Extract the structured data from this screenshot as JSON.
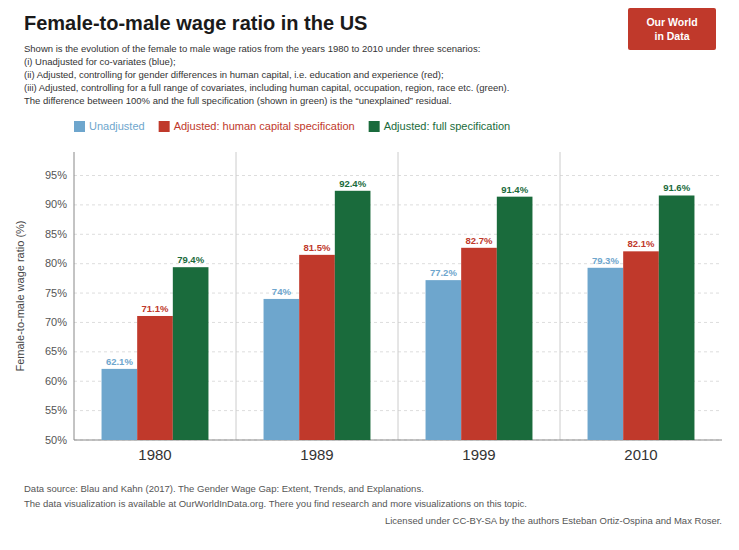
{
  "chart_data": {
    "type": "bar",
    "title": "Female-to-male wage ratio in the US",
    "subtitle": [
      "Shown is the evolution of the female to male wage ratios from the years 1980 to 2010 under three scenarios:",
      "(i) Unadjusted for co-variates (blue);",
      "(ii) Adjusted, controlling for gender differences in human capital, i.e. education and experience (red);",
      "(iii) Adjusted, controlling for a full range of covariates, including human capital, occupation, region, race etc. (green).",
      "The difference between 100% and the full specification (shown in green) is the “unexplained” residual."
    ],
    "ylabel": "Female-to-male wage ratio (%)",
    "categories": [
      "1980",
      "1989",
      "1999",
      "2010"
    ],
    "series": [
      {
        "name": "Unadjusted",
        "color": "#6EA6CD",
        "values": [
          62.1,
          74.0,
          77.2,
          79.3
        ],
        "value_labels": [
          "62.1%",
          "74%",
          "77.2%",
          "79.3%"
        ]
      },
      {
        "name": "Adjusted: human capital specification",
        "color": "#C0392B",
        "values": [
          71.1,
          81.5,
          82.7,
          82.1
        ],
        "value_labels": [
          "71.1%",
          "81.5%",
          "82.7%",
          "82.1%"
        ]
      },
      {
        "name": "Adjusted: full specification",
        "color": "#1A6B3C",
        "values": [
          79.4,
          92.4,
          91.4,
          91.6
        ],
        "value_labels": [
          "79.4%",
          "92.4%",
          "91.4%",
          "91.6%"
        ]
      }
    ],
    "ylim": [
      50,
      99
    ],
    "yticks": [
      {
        "value": 50,
        "label": "50%"
      },
      {
        "value": 55,
        "label": "55%"
      },
      {
        "value": 60,
        "label": "60%"
      },
      {
        "value": 65,
        "label": "65%"
      },
      {
        "value": 70,
        "label": "70%"
      },
      {
        "value": 75,
        "label": "75%"
      },
      {
        "value": 80,
        "label": "80%"
      },
      {
        "value": 85,
        "label": "85%"
      },
      {
        "value": 90,
        "label": "90%"
      },
      {
        "value": 95,
        "label": "95%"
      }
    ],
    "grid": true,
    "legend": "upper left",
    "data_labels": true,
    "annotations": [
      "Our World",
      "in Data",
      "Data source: Blau and Kahn (2017). The Gender Wage Gap: Extent, Trends, and Explanations.",
      "The data visualization is available at OurWorldInData.org. There you find research and more visualizations on this topic.",
      "Licensed under CC-BY-SA by the authors Esteban Ortiz-Ospina and Max Roser."
    ]
  }
}
